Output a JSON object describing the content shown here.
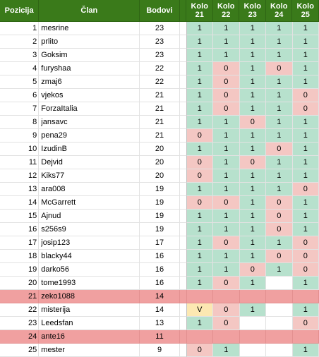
{
  "header": {
    "pos": "Pozicija",
    "name": "Član",
    "pts": "Bodovi",
    "rounds": [
      {
        "l1": "Kolo",
        "l2": "21"
      },
      {
        "l1": "Kolo",
        "l2": "22"
      },
      {
        "l1": "Kolo",
        "l2": "23"
      },
      {
        "l1": "Kolo",
        "l2": "24"
      },
      {
        "l1": "Kolo",
        "l2": "25"
      }
    ]
  },
  "colors": {
    "header": "#3a7a1a",
    "correct": "#b7e1cd",
    "wrong": "#f4c7c3",
    "special": "#fce8b2",
    "eliminated": "#f0a0a0"
  },
  "rows": [
    {
      "pos": "1",
      "name": "mesrine",
      "pts": "23",
      "k": [
        {
          "v": "1",
          "s": "g"
        },
        {
          "v": "1",
          "s": "g"
        },
        {
          "v": "1",
          "s": "g"
        },
        {
          "v": "1",
          "s": "g"
        },
        {
          "v": "1",
          "s": "g"
        }
      ]
    },
    {
      "pos": "2",
      "name": "prlito",
      "pts": "23",
      "k": [
        {
          "v": "1",
          "s": "g"
        },
        {
          "v": "1",
          "s": "g"
        },
        {
          "v": "1",
          "s": "g"
        },
        {
          "v": "1",
          "s": "g"
        },
        {
          "v": "1",
          "s": "g"
        }
      ]
    },
    {
      "pos": "3",
      "name": "Goksim",
      "pts": "23",
      "k": [
        {
          "v": "1",
          "s": "g"
        },
        {
          "v": "1",
          "s": "g"
        },
        {
          "v": "1",
          "s": "g"
        },
        {
          "v": "1",
          "s": "g"
        },
        {
          "v": "1",
          "s": "g"
        }
      ]
    },
    {
      "pos": "4",
      "name": "furyshaa",
      "pts": "22",
      "k": [
        {
          "v": "1",
          "s": "g"
        },
        {
          "v": "0",
          "s": "r"
        },
        {
          "v": "1",
          "s": "g"
        },
        {
          "v": "0",
          "s": "r"
        },
        {
          "v": "1",
          "s": "g"
        }
      ]
    },
    {
      "pos": "5",
      "name": "zmaj6",
      "pts": "22",
      "k": [
        {
          "v": "1",
          "s": "g"
        },
        {
          "v": "0",
          "s": "r"
        },
        {
          "v": "1",
          "s": "g"
        },
        {
          "v": "1",
          "s": "g"
        },
        {
          "v": "1",
          "s": "g"
        }
      ]
    },
    {
      "pos": "6",
      "name": "vjekos",
      "pts": "21",
      "k": [
        {
          "v": "1",
          "s": "g"
        },
        {
          "v": "0",
          "s": "r"
        },
        {
          "v": "1",
          "s": "g"
        },
        {
          "v": "1",
          "s": "g"
        },
        {
          "v": "0",
          "s": "r"
        }
      ]
    },
    {
      "pos": "7",
      "name": "ForzaItalia",
      "pts": "21",
      "k": [
        {
          "v": "1",
          "s": "g"
        },
        {
          "v": "0",
          "s": "r"
        },
        {
          "v": "1",
          "s": "g"
        },
        {
          "v": "1",
          "s": "g"
        },
        {
          "v": "0",
          "s": "r"
        }
      ]
    },
    {
      "pos": "8",
      "name": "jansavc",
      "pts": "21",
      "k": [
        {
          "v": "1",
          "s": "g"
        },
        {
          "v": "1",
          "s": "g"
        },
        {
          "v": "0",
          "s": "r"
        },
        {
          "v": "1",
          "s": "g"
        },
        {
          "v": "1",
          "s": "g"
        }
      ]
    },
    {
      "pos": "9",
      "name": "pena29",
      "pts": "21",
      "k": [
        {
          "v": "0",
          "s": "r"
        },
        {
          "v": "1",
          "s": "g"
        },
        {
          "v": "1",
          "s": "g"
        },
        {
          "v": "1",
          "s": "g"
        },
        {
          "v": "1",
          "s": "g"
        }
      ]
    },
    {
      "pos": "10",
      "name": "IzudinB",
      "pts": "20",
      "k": [
        {
          "v": "1",
          "s": "g"
        },
        {
          "v": "1",
          "s": "g"
        },
        {
          "v": "1",
          "s": "g"
        },
        {
          "v": "0",
          "s": "r"
        },
        {
          "v": "1",
          "s": "g"
        }
      ]
    },
    {
      "pos": "11",
      "name": "Dejvid",
      "pts": "20",
      "k": [
        {
          "v": "0",
          "s": "r"
        },
        {
          "v": "1",
          "s": "g"
        },
        {
          "v": "0",
          "s": "r"
        },
        {
          "v": "1",
          "s": "g"
        },
        {
          "v": "1",
          "s": "g"
        }
      ]
    },
    {
      "pos": "12",
      "name": "Kiks77",
      "pts": "20",
      "k": [
        {
          "v": "0",
          "s": "r"
        },
        {
          "v": "1",
          "s": "g"
        },
        {
          "v": "1",
          "s": "g"
        },
        {
          "v": "1",
          "s": "g"
        },
        {
          "v": "1",
          "s": "g"
        }
      ]
    },
    {
      "pos": "13",
      "name": "ara008",
      "pts": "19",
      "k": [
        {
          "v": "1",
          "s": "g"
        },
        {
          "v": "1",
          "s": "g"
        },
        {
          "v": "1",
          "s": "g"
        },
        {
          "v": "1",
          "s": "g"
        },
        {
          "v": "0",
          "s": "r"
        }
      ]
    },
    {
      "pos": "14",
      "name": "McGarrett",
      "pts": "19",
      "k": [
        {
          "v": "0",
          "s": "r"
        },
        {
          "v": "0",
          "s": "r"
        },
        {
          "v": "1",
          "s": "g"
        },
        {
          "v": "0",
          "s": "r"
        },
        {
          "v": "1",
          "s": "g"
        }
      ]
    },
    {
      "pos": "15",
      "name": "Ajnud",
      "pts": "19",
      "k": [
        {
          "v": "1",
          "s": "g"
        },
        {
          "v": "1",
          "s": "g"
        },
        {
          "v": "1",
          "s": "g"
        },
        {
          "v": "0",
          "s": "r"
        },
        {
          "v": "1",
          "s": "g"
        }
      ]
    },
    {
      "pos": "16",
      "name": "s256s9",
      "pts": "19",
      "k": [
        {
          "v": "1",
          "s": "g"
        },
        {
          "v": "1",
          "s": "g"
        },
        {
          "v": "1",
          "s": "g"
        },
        {
          "v": "0",
          "s": "r"
        },
        {
          "v": "1",
          "s": "g"
        }
      ]
    },
    {
      "pos": "17",
      "name": "josip123",
      "pts": "17",
      "k": [
        {
          "v": "1",
          "s": "g"
        },
        {
          "v": "0",
          "s": "r"
        },
        {
          "v": "1",
          "s": "g"
        },
        {
          "v": "1",
          "s": "g"
        },
        {
          "v": "0",
          "s": "r"
        }
      ]
    },
    {
      "pos": "18",
      "name": "blacky44",
      "pts": "16",
      "k": [
        {
          "v": "1",
          "s": "g"
        },
        {
          "v": "1",
          "s": "g"
        },
        {
          "v": "1",
          "s": "g"
        },
        {
          "v": "0",
          "s": "r"
        },
        {
          "v": "0",
          "s": "r"
        }
      ]
    },
    {
      "pos": "19",
      "name": "darko56",
      "pts": "16",
      "k": [
        {
          "v": "1",
          "s": "g"
        },
        {
          "v": "1",
          "s": "g"
        },
        {
          "v": "0",
          "s": "r"
        },
        {
          "v": "1",
          "s": "g"
        },
        {
          "v": "0",
          "s": "r"
        }
      ]
    },
    {
      "pos": "20",
      "name": "tome1993",
      "pts": "16",
      "k": [
        {
          "v": "1",
          "s": "g"
        },
        {
          "v": "0",
          "s": "r"
        },
        {
          "v": "1",
          "s": "g"
        },
        {
          "v": "",
          "s": "e"
        },
        {
          "v": "1",
          "s": "g"
        }
      ]
    },
    {
      "pos": "21",
      "name": "zeko1088",
      "pts": "14",
      "elim": true,
      "k": [
        {
          "v": "",
          "s": ""
        },
        {
          "v": "",
          "s": ""
        },
        {
          "v": "",
          "s": ""
        },
        {
          "v": "",
          "s": ""
        },
        {
          "v": "",
          "s": ""
        }
      ]
    },
    {
      "pos": "22",
      "name": "misterija",
      "pts": "14",
      "k": [
        {
          "v": "V",
          "s": "y"
        },
        {
          "v": "0",
          "s": "r"
        },
        {
          "v": "1",
          "s": "g"
        },
        {
          "v": "",
          "s": "e"
        },
        {
          "v": "1",
          "s": "g"
        }
      ]
    },
    {
      "pos": "23",
      "name": "Leedsfan",
      "pts": "13",
      "k": [
        {
          "v": "1",
          "s": "g"
        },
        {
          "v": "0",
          "s": "r"
        },
        {
          "v": "",
          "s": "e"
        },
        {
          "v": "",
          "s": "e"
        },
        {
          "v": "0",
          "s": "r"
        }
      ]
    },
    {
      "pos": "24",
      "name": "ante16",
      "pts": "11",
      "elim": true,
      "k": [
        {
          "v": "",
          "s": ""
        },
        {
          "v": "",
          "s": ""
        },
        {
          "v": "",
          "s": ""
        },
        {
          "v": "",
          "s": ""
        },
        {
          "v": "",
          "s": ""
        }
      ]
    },
    {
      "pos": "25",
      "name": "mester",
      "pts": "9",
      "k": [
        {
          "v": "0",
          "s": "r"
        },
        {
          "v": "1",
          "s": "g"
        },
        {
          "v": "",
          "s": "e"
        },
        {
          "v": "",
          "s": "e"
        },
        {
          "v": "1",
          "s": "g"
        }
      ]
    }
  ]
}
